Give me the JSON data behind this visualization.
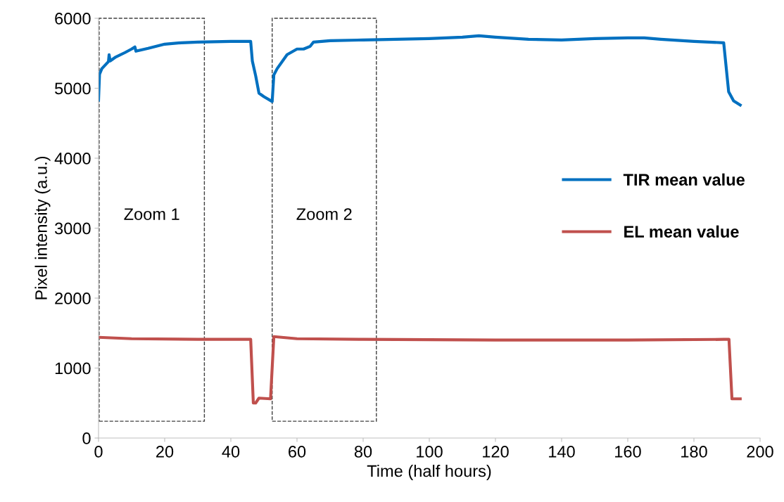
{
  "chart_data": {
    "type": "line",
    "xlabel": "Time (half hours)",
    "ylabel": "Pixel intensity (a.u.)",
    "xlim": [
      0,
      200
    ],
    "xticks": [
      0,
      20,
      40,
      60,
      80,
      100,
      120,
      140,
      160,
      180,
      200
    ],
    "ylim": [
      0,
      6000
    ],
    "yticks": [
      0,
      1000,
      2000,
      3000,
      4000,
      5000,
      6000
    ],
    "grid": false,
    "legend": "right",
    "marker": "none",
    "line_style": "solid",
    "annotations": [
      "Zoom 1",
      "Zoom 2"
    ],
    "series": [
      {
        "name": "TIR mean value",
        "color": "#0070c0",
        "x": [
          0,
          0.3,
          1,
          3,
          3.2,
          3.5,
          5,
          8,
          10,
          11,
          11.3,
          15,
          20,
          25,
          30,
          40,
          46,
          46.5,
          47.5,
          48.5,
          50,
          52.5,
          53,
          54,
          57,
          60,
          62,
          64,
          65,
          70,
          80,
          90,
          100,
          110,
          115,
          120,
          130,
          140,
          150,
          160,
          165,
          170,
          180,
          189,
          190.5,
          192,
          194
        ],
        "values": [
          4830,
          5200,
          5280,
          5380,
          5480,
          5390,
          5440,
          5510,
          5560,
          5590,
          5530,
          5570,
          5630,
          5650,
          5660,
          5670,
          5670,
          5390,
          5180,
          4930,
          4880,
          4810,
          5190,
          5280,
          5480,
          5560,
          5560,
          5600,
          5660,
          5680,
          5690,
          5700,
          5710,
          5730,
          5750,
          5730,
          5700,
          5690,
          5710,
          5720,
          5720,
          5700,
          5670,
          5650,
          4950,
          4820,
          4760
        ]
      },
      {
        "name": "EL mean value",
        "color": "#c0504d",
        "x": [
          0,
          10,
          30,
          46,
          46.8,
          47.5,
          48.5,
          52,
          53,
          60,
          80,
          120,
          160,
          189,
          190.6,
          191.5,
          194
        ],
        "values": [
          1440,
          1420,
          1410,
          1410,
          500,
          500,
          570,
          560,
          1450,
          1420,
          1410,
          1400,
          1400,
          1410,
          1410,
          560,
          560
        ]
      }
    ]
  }
}
